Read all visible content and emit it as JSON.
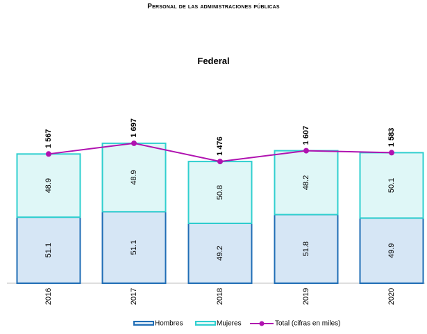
{
  "header": {
    "title": "Personal de las administraciones públicas",
    "subtitle": "Federal"
  },
  "chart_data": {
    "type": "bar",
    "stacked": true,
    "title": "Personal de las administraciones públicas",
    "subtitle": "Federal",
    "categories": [
      "2016",
      "2017",
      "2018",
      "2019",
      "2020"
    ],
    "series": [
      {
        "name": "Hombres",
        "kind": "bar",
        "values": [
          51.1,
          51.1,
          49.2,
          51.8,
          49.9
        ],
        "color": "#d6e6f5",
        "stroke": "#1f6db5"
      },
      {
        "name": "Mujeres",
        "kind": "bar",
        "values": [
          48.9,
          48.9,
          50.8,
          48.2,
          50.1
        ],
        "color": "#dff7f7",
        "stroke": "#2fcfcf"
      },
      {
        "name": "Total (cifras en miles)",
        "kind": "line",
        "values": [
          1567,
          1697,
          1476,
          1607,
          1583
        ],
        "labels": [
          "1 567",
          "1 697",
          "1 476",
          "1 607",
          "1 583"
        ],
        "color": "#b012b0"
      }
    ],
    "legend": "bottom",
    "grid": false
  }
}
